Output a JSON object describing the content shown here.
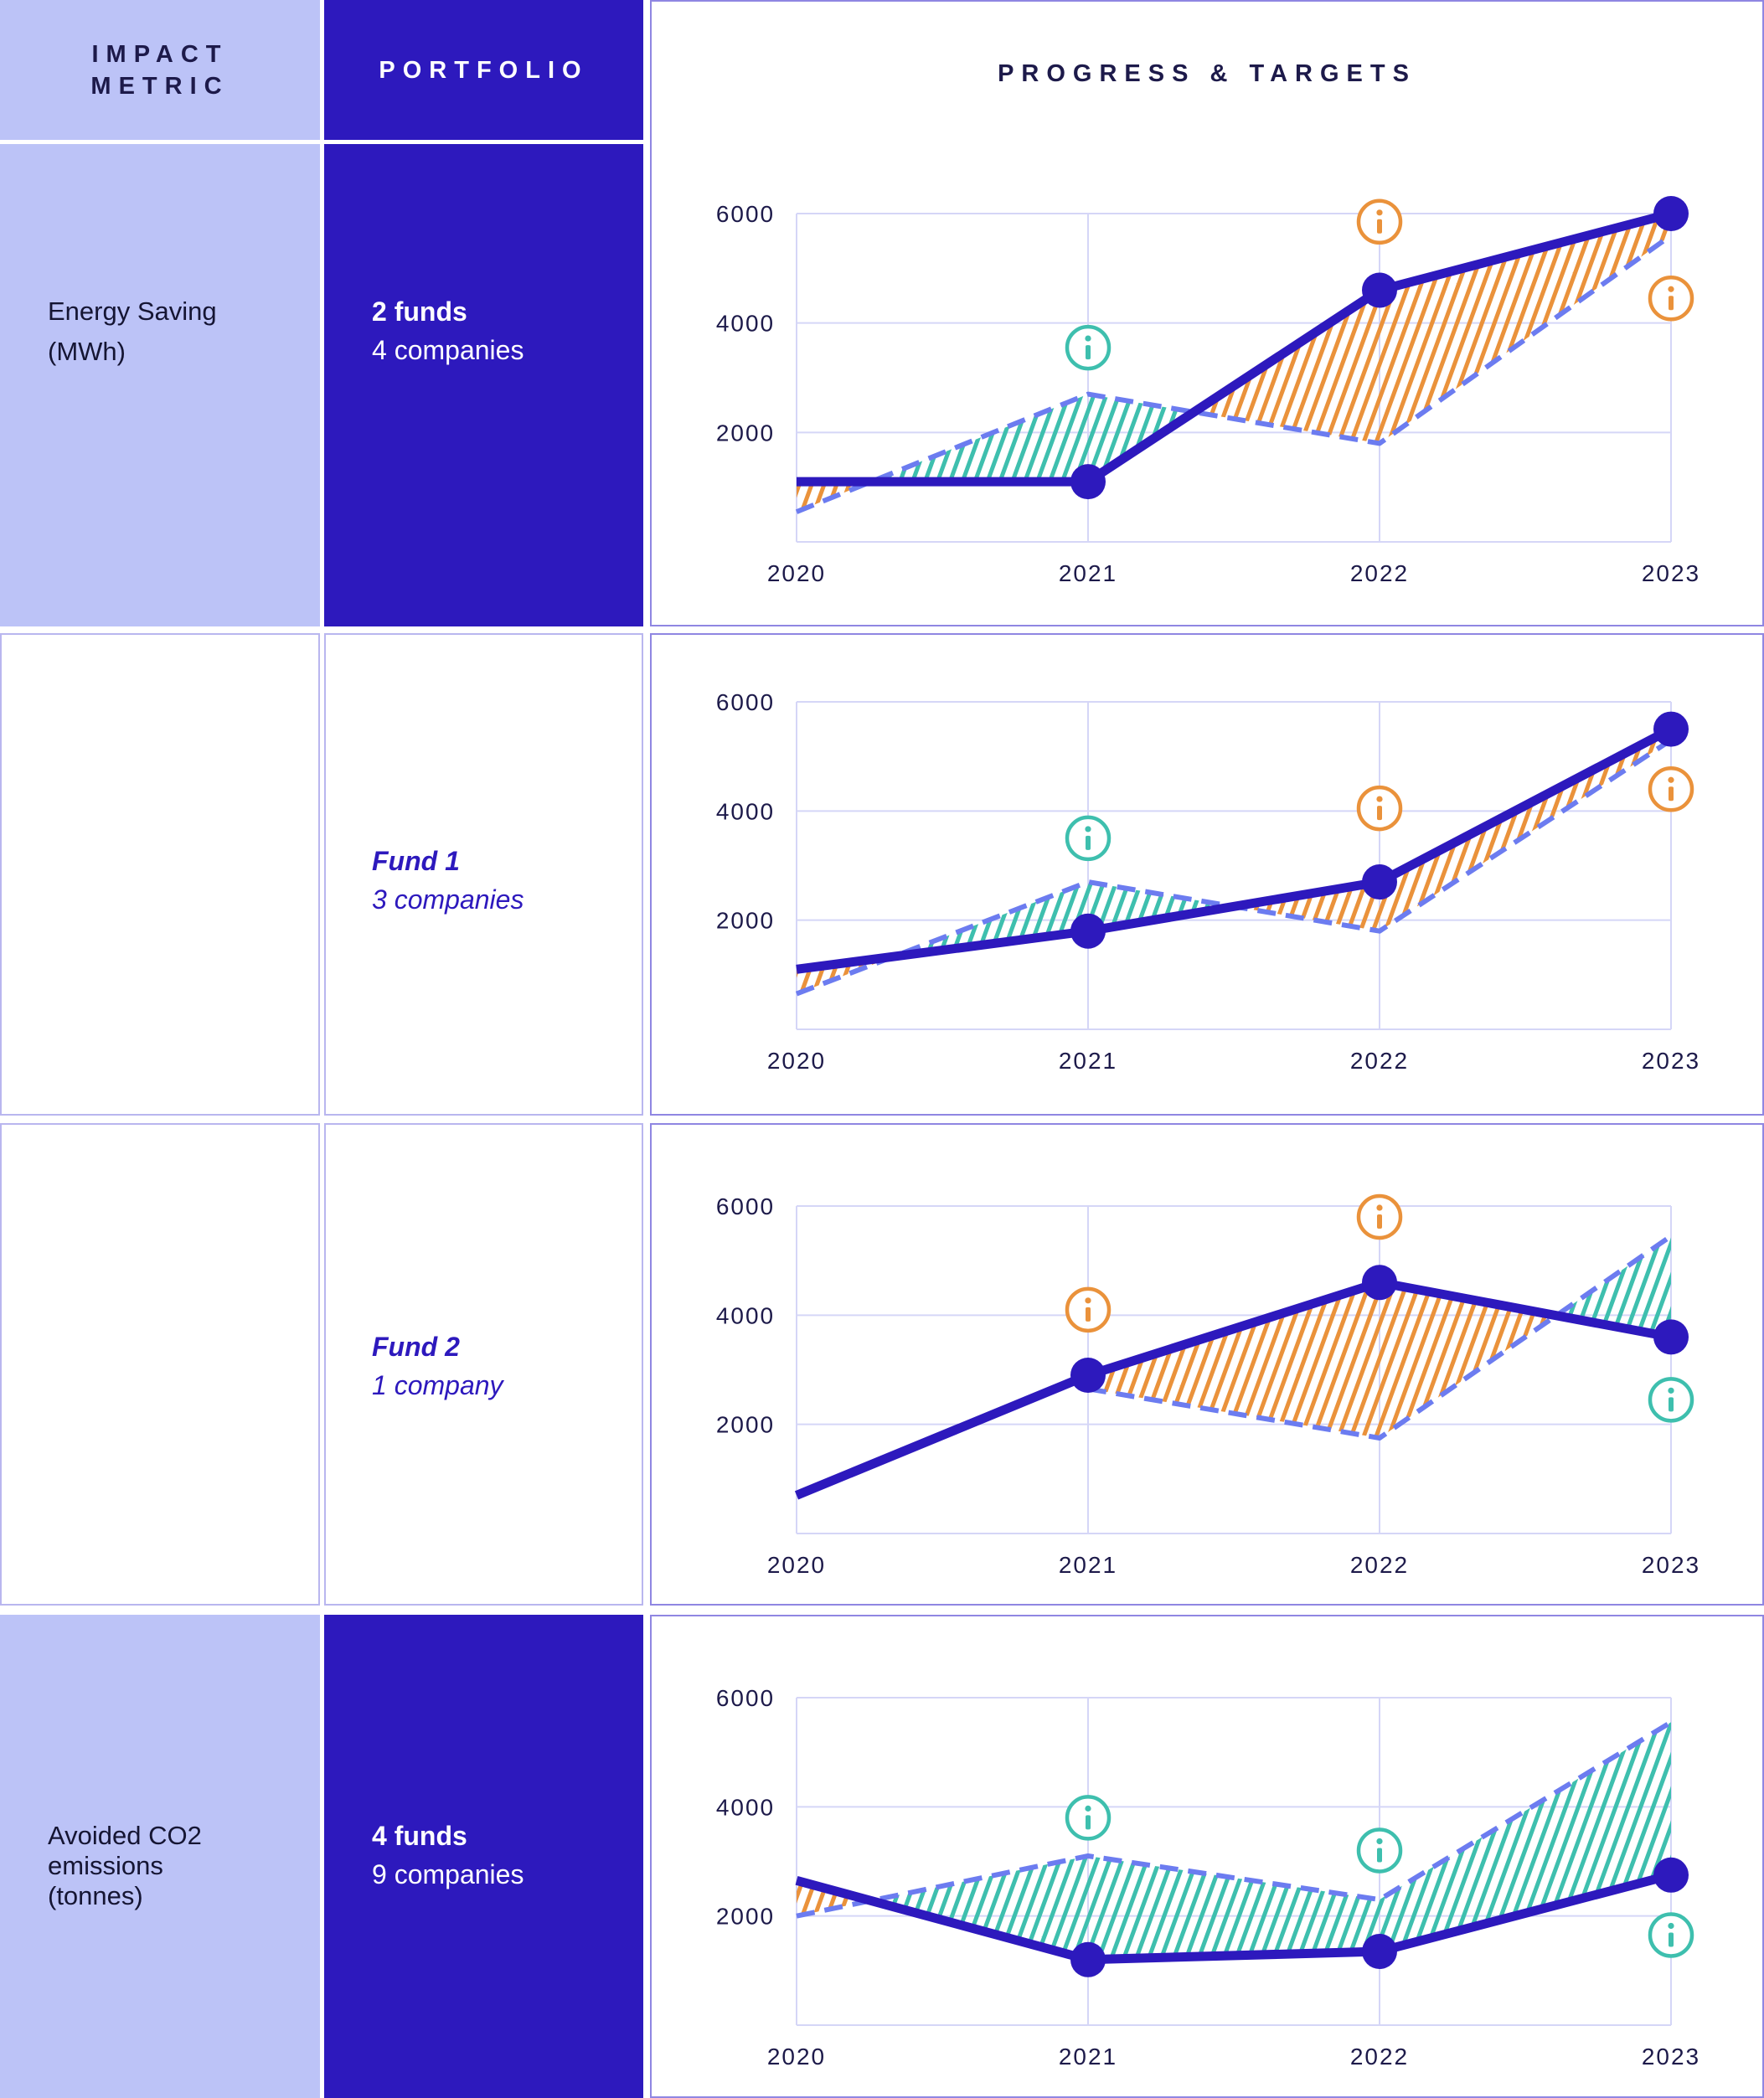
{
  "headers": {
    "impact_metric": "IMPACT METRIC",
    "impact_metric_line1": "IMPACT",
    "impact_metric_line2": "METRIC",
    "portfolio": "PORTFOLIO",
    "progress_targets": "PROGRESS & TARGETS"
  },
  "rows": [
    {
      "metric_line1": "Energy Saving",
      "metric_line2": "(MWh)",
      "metric_line3": "",
      "portfolio_line1": "2 funds",
      "portfolio_line2": "4 companies"
    },
    {
      "metric_line1": "",
      "metric_line2": "",
      "metric_line3": "",
      "portfolio_line1": "Fund 1",
      "portfolio_line2": "3 companies"
    },
    {
      "metric_line1": "",
      "metric_line2": "",
      "metric_line3": "",
      "portfolio_line1": "Fund 2",
      "portfolio_line2": "1 company"
    },
    {
      "metric_line1": "Avoided CO2",
      "metric_line2": "emissions",
      "metric_line3": "(tonnes)",
      "portfolio_line1": "4 funds",
      "portfolio_line2": "9 companies"
    }
  ],
  "colors": {
    "light_purple": "#bcc3f7",
    "dark_blue": "#2d19bd",
    "actual_line": "#2d19bd",
    "target_line": "#6c7cf0",
    "ahead_fill": "#ea923b",
    "behind_fill": "#3ebfae",
    "grid": "#d5d6f7"
  },
  "chart_data": [
    {
      "type": "line",
      "categories": [
        "2020",
        "2021",
        "2022",
        "2023"
      ],
      "yticks": [
        2000,
        4000,
        6000
      ],
      "ylim": [
        0,
        6000
      ],
      "grid": true,
      "series": [
        {
          "values": [
            1100,
            1100,
            4600,
            6000
          ],
          "style": "solid"
        },
        {
          "values": [
            550,
            2700,
            1800,
            5600
          ],
          "style": "dashed"
        }
      ],
      "info_markers": [
        {
          "category": "2021",
          "status": "behind",
          "value": 3550
        },
        {
          "category": "2022",
          "status": "ahead",
          "value": 5850
        },
        {
          "category": "2023",
          "status": "ahead",
          "value": 4450
        }
      ]
    },
    {
      "type": "line",
      "categories": [
        "2020",
        "2021",
        "2022",
        "2023"
      ],
      "yticks": [
        2000,
        4000,
        6000
      ],
      "ylim": [
        0,
        6000
      ],
      "grid": true,
      "series": [
        {
          "values": [
            1100,
            1800,
            2700,
            5500
          ],
          "style": "solid"
        },
        {
          "values": [
            650,
            2700,
            1800,
            5300
          ],
          "style": "dashed"
        }
      ],
      "info_markers": [
        {
          "category": "2021",
          "status": "behind",
          "value": 3500
        },
        {
          "category": "2022",
          "status": "ahead",
          "value": 4050
        },
        {
          "category": "2023",
          "status": "ahead",
          "value": 4400
        }
      ]
    },
    {
      "type": "line",
      "categories": [
        "2020",
        "2021",
        "2022",
        "2023"
      ],
      "yticks": [
        2000,
        4000,
        6000
      ],
      "ylim": [
        0,
        6000
      ],
      "grid": true,
      "series": [
        {
          "values": [
            700,
            2900,
            4600,
            3600
          ],
          "style": "solid"
        },
        {
          "values": [
            null,
            2650,
            1750,
            5450
          ],
          "style": "dashed"
        }
      ],
      "info_markers": [
        {
          "category": "2021",
          "status": "ahead",
          "value": 4100
        },
        {
          "category": "2022",
          "status": "ahead",
          "value": 5800
        },
        {
          "category": "2023",
          "status": "behind",
          "value": 2450
        }
      ]
    },
    {
      "type": "line",
      "categories": [
        "2020",
        "2021",
        "2022",
        "2023"
      ],
      "yticks": [
        2000,
        4000,
        6000
      ],
      "ylim": [
        0,
        6000
      ],
      "grid": true,
      "series": [
        {
          "values": [
            2650,
            1200,
            1350,
            2750
          ],
          "style": "solid"
        },
        {
          "values": [
            2000,
            3100,
            2300,
            5550
          ],
          "style": "dashed"
        }
      ],
      "info_markers": [
        {
          "category": "2021",
          "status": "behind",
          "value": 3800
        },
        {
          "category": "2022",
          "status": "behind",
          "value": 3200
        },
        {
          "category": "2023",
          "status": "behind",
          "value": 1650
        }
      ]
    }
  ]
}
